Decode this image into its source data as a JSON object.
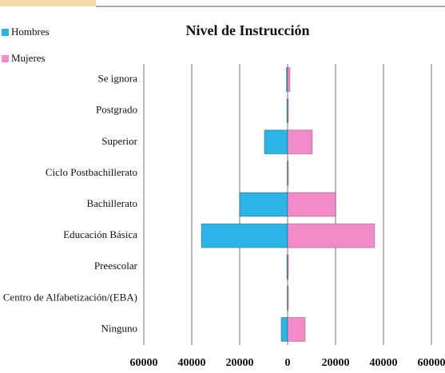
{
  "chart_data": {
    "type": "bar",
    "orientation": "horizontal",
    "title": "Nivel de Instrucción",
    "categories": [
      "Se ignora",
      "Postgrado",
      "Superior",
      "Ciclo Postbachillerato",
      "Bachillerato",
      "Educación Básica",
      "Preescolar",
      "Centro de Alfabetización/(EBA)",
      "Ninguno"
    ],
    "series": [
      {
        "name": "Hombres",
        "color": "#2bb5e6",
        "values": [
          -500,
          -300,
          -9700,
          -200,
          -20000,
          -36000,
          -300,
          -200,
          -2700
        ]
      },
      {
        "name": "Mujeres",
        "color": "#f28cc8",
        "values": [
          1000,
          300,
          10300,
          300,
          20000,
          36300,
          200,
          300,
          7300
        ]
      }
    ],
    "xlim": [
      -60000,
      60000
    ],
    "xticks": [
      {
        "value": -60000,
        "label": "60000"
      },
      {
        "value": -40000,
        "label": "40000"
      },
      {
        "value": -20000,
        "label": "20000"
      },
      0,
      20000,
      40000,
      60000
    ],
    "grid": true,
    "legend": "upper left"
  }
}
